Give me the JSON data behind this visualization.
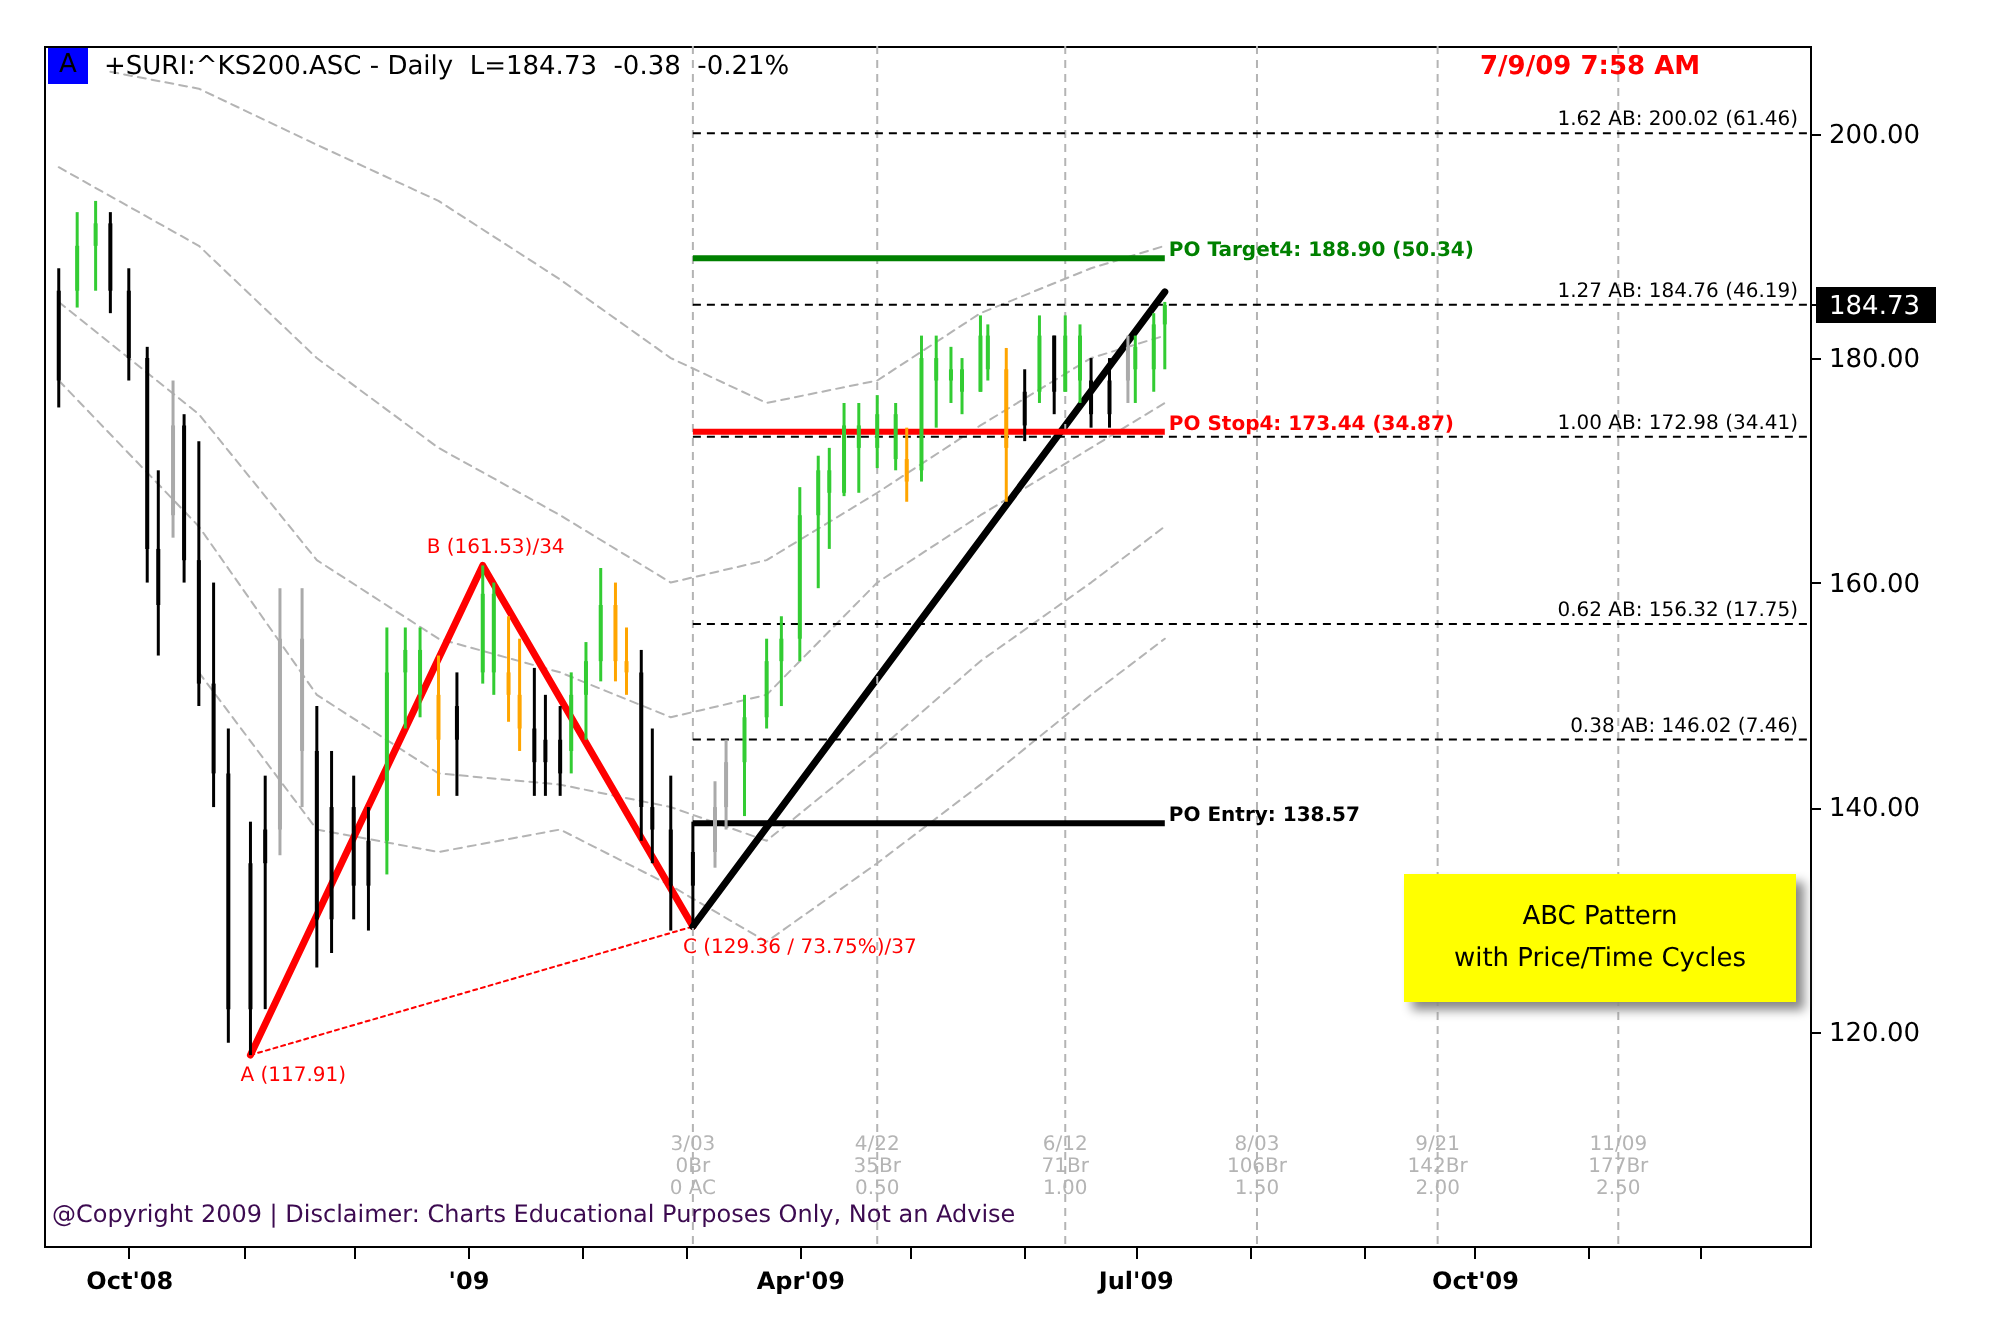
{
  "chart_data": {
    "type": "candlestick",
    "title": "+SURI:^KS200.ASC - Daily  L=184.73  -0.38  -0.21%",
    "subtitle": "7/9/09 7:58 AM",
    "x": [
      "2008-09-12",
      "2008-09-17",
      "2008-09-22",
      "2008-09-26",
      "2008-10-01",
      "2008-10-06",
      "2008-10-09",
      "2008-10-13",
      "2008-10-16",
      "2008-10-20",
      "2008-10-24",
      "2008-10-28",
      "2008-11-03",
      "2008-11-07",
      "2008-11-11",
      "2008-11-17",
      "2008-11-21",
      "2008-11-25",
      "2008-12-01",
      "2008-12-05",
      "2008-12-10",
      "2008-12-15",
      "2008-12-19",
      "2008-12-24",
      "2008-12-29",
      "2009-01-05",
      "2009-01-08",
      "2009-01-12",
      "2009-01-15",
      "2009-01-19",
      "2009-01-22",
      "2009-01-26",
      "2009-01-29",
      "2009-02-02",
      "2009-02-06",
      "2009-02-10",
      "2009-02-13",
      "2009-02-17",
      "2009-02-20",
      "2009-02-25",
      "2009-03-03",
      "2009-03-09",
      "2009-03-12",
      "2009-03-17",
      "2009-03-23",
      "2009-03-27",
      "2009-04-01",
      "2009-04-06",
      "2009-04-09",
      "2009-04-13",
      "2009-04-17",
      "2009-04-22",
      "2009-04-27",
      "2009-04-30",
      "2009-05-04",
      "2009-05-08",
      "2009-05-12",
      "2009-05-15",
      "2009-05-20",
      "2009-05-22",
      "2009-05-27",
      "2009-06-01",
      "2009-06-05",
      "2009-06-09",
      "2009-06-12",
      "2009-06-16",
      "2009-06-19",
      "2009-06-24",
      "2009-06-29",
      "2009-07-01",
      "2009-07-06",
      "2009-07-09"
    ],
    "ohlc": [
      [
        186,
        188,
        175.6,
        178
      ],
      [
        186,
        193,
        184.5,
        190
      ],
      [
        190,
        194,
        186,
        192
      ],
      [
        192,
        193,
        184,
        186
      ],
      [
        186,
        188,
        178,
        180
      ],
      [
        180,
        181,
        160,
        163
      ],
      [
        163,
        170,
        153.5,
        158
      ],
      [
        166,
        178,
        164,
        174
      ],
      [
        174,
        175,
        160,
        162
      ],
      [
        162,
        172.6,
        149,
        151
      ],
      [
        151,
        160,
        140,
        143
      ],
      [
        143,
        147,
        119,
        122
      ],
      [
        135,
        138.7,
        117.91,
        122
      ],
      [
        138,
        142.8,
        122,
        135
      ],
      [
        138,
        159.5,
        135.7,
        155
      ],
      [
        145,
        159.5,
        140,
        155
      ],
      [
        145,
        149,
        125.7,
        130
      ],
      [
        140,
        145,
        127,
        130
      ],
      [
        140,
        142.8,
        130,
        133
      ],
      [
        137,
        140,
        129,
        133
      ],
      [
        137,
        156,
        134,
        152
      ],
      [
        152,
        156,
        147,
        154
      ],
      [
        150,
        156,
        148,
        154
      ],
      [
        150,
        153.5,
        141,
        146
      ],
      [
        149,
        152,
        141,
        146
      ],
      [
        152,
        161.53,
        151,
        159
      ],
      [
        152,
        160,
        150,
        159
      ],
      [
        152,
        157,
        147.6,
        150
      ],
      [
        150,
        155,
        145,
        147
      ],
      [
        147,
        152.4,
        141,
        144
      ],
      [
        146,
        150,
        141,
        144
      ],
      [
        146,
        149,
        141,
        143
      ],
      [
        145,
        152,
        143,
        150
      ],
      [
        150,
        154.7,
        146,
        153
      ],
      [
        153,
        161.3,
        151.2,
        158
      ],
      [
        158,
        160,
        151.2,
        153
      ],
      [
        153,
        156,
        150,
        152
      ],
      [
        152,
        154,
        137,
        140
      ],
      [
        140,
        147,
        135,
        138
      ],
      [
        138,
        142.8,
        129,
        133
      ],
      [
        136,
        138.7,
        129.36,
        133
      ],
      [
        136,
        142.3,
        134.6,
        140
      ],
      [
        140,
        146,
        138,
        144
      ],
      [
        144,
        150,
        139.2,
        148
      ],
      [
        148,
        155,
        147,
        153
      ],
      [
        153,
        157,
        149,
        155
      ],
      [
        155,
        168.5,
        153,
        166
      ],
      [
        166,
        171.3,
        159.5,
        170
      ],
      [
        168,
        172,
        163,
        170
      ],
      [
        168,
        176,
        167.7,
        174
      ],
      [
        172,
        176,
        168,
        174
      ],
      [
        172,
        176.7,
        170.2,
        175
      ],
      [
        171,
        176,
        170,
        175
      ],
      [
        171,
        173.8,
        167.2,
        169
      ],
      [
        170,
        182,
        169,
        180
      ],
      [
        178,
        182,
        173.8,
        180
      ],
      [
        178,
        181,
        176,
        179
      ],
      [
        177,
        180,
        175,
        179
      ],
      [
        177,
        183.8,
        177,
        182
      ],
      [
        179,
        183,
        178,
        182
      ],
      [
        179,
        180.9,
        167.2,
        172
      ],
      [
        177,
        179,
        172.6,
        174
      ],
      [
        177,
        183.8,
        176,
        182
      ],
      [
        182,
        182,
        175,
        177
      ],
      [
        177,
        183.8,
        177,
        182
      ],
      [
        178,
        183,
        176,
        182
      ],
      [
        178,
        180,
        173.8,
        175
      ],
      [
        178,
        180,
        173.8,
        175
      ],
      [
        178,
        182,
        176,
        181
      ],
      [
        179,
        182,
        176,
        181
      ],
      [
        179,
        184,
        177,
        183
      ],
      [
        183,
        185,
        179,
        184.73
      ]
    ],
    "colors": [
      "#000000",
      "#33cc33",
      "#33cc33",
      "#000000",
      "#000000",
      "#000000",
      "#000000",
      "#aaaaaa",
      "#000000",
      "#000000",
      "#000000",
      "#000000",
      "#000000",
      "#000000",
      "#aaaaaa",
      "#aaaaaa",
      "#000000",
      "#000000",
      "#000000",
      "#000000",
      "#33cc33",
      "#33cc33",
      "#33cc33",
      "#ffa500",
      "#000000",
      "#33cc33",
      "#33cc33",
      "#ffa500",
      "#ffa500",
      "#000000",
      "#000000",
      "#000000",
      "#33cc33",
      "#33cc33",
      "#33cc33",
      "#ffa500",
      "#ffa500",
      "#000000",
      "#000000",
      "#000000",
      "#000000",
      "#aaaaaa",
      "#aaaaaa",
      "#33cc33",
      "#33cc33",
      "#33cc33",
      "#33cc33",
      "#33cc33",
      "#33cc33",
      "#33cc33",
      "#33cc33",
      "#33cc33",
      "#33cc33",
      "#ffa500",
      "#33cc33",
      "#33cc33",
      "#33cc33",
      "#33cc33",
      "#33cc33",
      "#33cc33",
      "#ffa500",
      "#000000",
      "#33cc33",
      "#000000",
      "#33cc33",
      "#33cc33",
      "#000000",
      "#000000",
      "#aaaaaa",
      "#33cc33",
      "#33cc33",
      "#33cc33"
    ],
    "series": [
      {
        "type": "line",
        "color": "#b4b4b4",
        "line_style": "dashed",
        "x": [
          "2008-09-26",
          "2008-10-20",
          "2008-11-21",
          "2008-12-24",
          "2009-01-26",
          "2009-02-25",
          "2009-03-23",
          "2009-04-22",
          "2009-05-20",
          "2009-06-19",
          "2009-07-09"
        ],
        "values": [
          205.5,
          204,
          199,
          194,
          187,
          180,
          176,
          178,
          184,
          188,
          190
        ]
      },
      {
        "type": "line",
        "color": "#b4b4b4",
        "line_style": "dashed",
        "x": [
          "2008-09-12",
          "2008-10-20",
          "2008-11-21",
          "2008-12-24",
          "2009-01-26",
          "2009-02-25",
          "2009-03-23",
          "2009-04-22",
          "2009-05-20",
          "2009-06-19",
          "2009-07-09"
        ],
        "values": [
          197,
          190,
          180,
          172,
          166,
          160,
          162,
          168,
          174,
          180,
          182
        ]
      },
      {
        "type": "line",
        "color": "#b4b4b4",
        "line_style": "dashed",
        "x": [
          "2008-09-12",
          "2008-10-20",
          "2008-11-21",
          "2008-12-24",
          "2009-01-26",
          "2009-02-25",
          "2009-03-23",
          "2009-04-22",
          "2009-05-20",
          "2009-06-19",
          "2009-07-09"
        ],
        "values": [
          185,
          175,
          162,
          155,
          152,
          148,
          150,
          160,
          166,
          172,
          176
        ]
      },
      {
        "type": "line",
        "color": "#b4b4b4",
        "line_style": "dashed",
        "x": [
          "2008-09-12",
          "2008-10-20",
          "2008-11-21",
          "2008-12-24",
          "2009-01-26",
          "2009-02-25",
          "2009-03-23",
          "2009-04-22",
          "2009-05-20",
          "2009-06-19",
          "2009-07-09"
        ],
        "values": [
          178,
          165,
          150,
          143,
          142,
          140,
          137,
          145,
          153,
          160,
          165
        ]
      },
      {
        "type": "line",
        "color": "#b4b4b4",
        "line_style": "dashed",
        "x": [
          "2008-10-20",
          "2008-11-21",
          "2008-12-24",
          "2009-01-26",
          "2009-02-25",
          "2009-03-23",
          "2009-04-22",
          "2009-05-20",
          "2009-06-19",
          "2009-07-09"
        ],
        "values": [
          152,
          138,
          136,
          138,
          133,
          128,
          135,
          142,
          150,
          155
        ]
      },
      {
        "type": "line",
        "color": "#ff0000",
        "line_style": "dotted",
        "x": [
          "2008-11-03",
          "2009-03-03"
        ],
        "values": [
          117.91,
          129.36
        ]
      },
      {
        "type": "line",
        "color": "#ff0000",
        "line_style": "solid",
        "x": [
          "2008-11-03",
          "2009-01-05",
          "2009-03-03"
        ],
        "values": [
          117.91,
          161.53,
          129.36
        ]
      },
      {
        "type": "line",
        "color": "#000000",
        "line_style": "solid",
        "x": [
          "2009-03-03",
          "2009-07-09"
        ],
        "values": [
          129.36,
          185.9
        ]
      }
    ],
    "xlim": [
      "2008-09-08",
      "2009-12-31"
    ],
    "ylim": [
      100.9,
      207.8
    ],
    "xticks": [
      {
        "value": "2008-10-01",
        "label": "Oct'08"
      },
      {
        "value": "2008-11-01",
        "label": null
      },
      {
        "value": "2008-12-01",
        "label": null
      },
      {
        "value": "2009-01-01",
        "label": "'09"
      },
      {
        "value": "2009-02-01",
        "label": null
      },
      {
        "value": "2009-03-01",
        "label": null
      },
      {
        "value": "2009-04-01",
        "label": "Apr'09"
      },
      {
        "value": "2009-05-01",
        "label": null
      },
      {
        "value": "2009-06-01",
        "label": null
      },
      {
        "value": "2009-07-01",
        "label": "Jul'09"
      },
      {
        "value": "2009-08-01",
        "label": null
      },
      {
        "value": "2009-09-01",
        "label": null
      },
      {
        "value": "2009-10-01",
        "label": "Oct'09"
      },
      {
        "value": "2009-11-01",
        "label": null
      },
      {
        "value": "2009-12-01",
        "label": null
      }
    ],
    "yticks": [
      {
        "value": 120,
        "label": "120.00"
      },
      {
        "value": 140,
        "label": "140.00"
      },
      {
        "value": 160,
        "label": "160.00"
      },
      {
        "value": 180,
        "label": "180.00"
      },
      {
        "value": 184.73,
        "label": "184.73"
      },
      {
        "value": 200,
        "label": "200.00"
      }
    ],
    "ref_lines": [
      {
        "axis": "x",
        "value": "2009-03-03",
        "label": "3/03\n0Br\n0 AC",
        "color": "#b4b4b4",
        "line_style": "dashed"
      },
      {
        "axis": "x",
        "value": "2009-04-22",
        "label": "4/22\n35Br\n0.50",
        "color": "#b4b4b4",
        "line_style": "dashed"
      },
      {
        "axis": "x",
        "value": "2009-06-12",
        "label": "6/12\n71Br\n1.00",
        "color": "#b4b4b4",
        "line_style": "dashed"
      },
      {
        "axis": "x",
        "value": "2009-08-03",
        "label": "8/03\n106Br\n1.50",
        "color": "#b4b4b4",
        "line_style": "dashed"
      },
      {
        "axis": "x",
        "value": "2009-09-21",
        "label": "9/21\n142Br\n2.00",
        "color": "#b4b4b4",
        "line_style": "dashed"
      },
      {
        "axis": "x",
        "value": "2009-11-09",
        "label": "11/09\n177Br\n2.50",
        "color": "#b4b4b4",
        "line_style": "dashed"
      },
      {
        "axis": "y",
        "value": 200.02,
        "label": "1.62 AB: 200.02 (61.46)",
        "color": "#000000",
        "line_style": "dashed"
      },
      {
        "axis": "y",
        "value": 184.76,
        "label": "1.27 AB: 184.76 (46.19)",
        "color": "#000000",
        "line_style": "dashed"
      },
      {
        "axis": "y",
        "value": 172.98,
        "label": "1.00 AB: 172.98 (34.41)",
        "color": "#000000",
        "line_style": "dashed"
      },
      {
        "axis": "y",
        "value": 156.32,
        "label": "0.62 AB: 156.32 (17.75)",
        "color": "#000000",
        "line_style": "dashed"
      },
      {
        "axis": "y",
        "value": 146.02,
        "label": "0.38 AB: 146.02 (7.46)",
        "color": "#000000",
        "line_style": "dashed"
      },
      {
        "axis": "y",
        "value": 188.9,
        "label": "PO Target4: 188.90 (50.34)",
        "color": "#008000",
        "line_style": "solid"
      },
      {
        "axis": "y",
        "value": 173.44,
        "label": "PO Stop4: 173.44 (34.87)",
        "color": "#ff0000",
        "line_style": "solid"
      },
      {
        "axis": "y",
        "value": 138.57,
        "label": "PO Entry: 138.57",
        "color": "#000000",
        "line_style": "solid"
      }
    ],
    "annotations": [
      "A",
      "ABC Pattern\nwith Price/Time Cycles",
      "@Copyright 2009 | Disclaimer: Charts Educational Purposes Only, Not an Advise",
      {
        "text": "A (117.91)",
        "x": "2008-11-03",
        "y": 117.91
      },
      {
        "text": "B (161.53)/34",
        "x": "2009-01-05",
        "y": 161.53
      },
      {
        "text": "C (129.36 / 73.75%)/37",
        "x": "2009-03-03",
        "y": 129.36
      }
    ]
  }
}
